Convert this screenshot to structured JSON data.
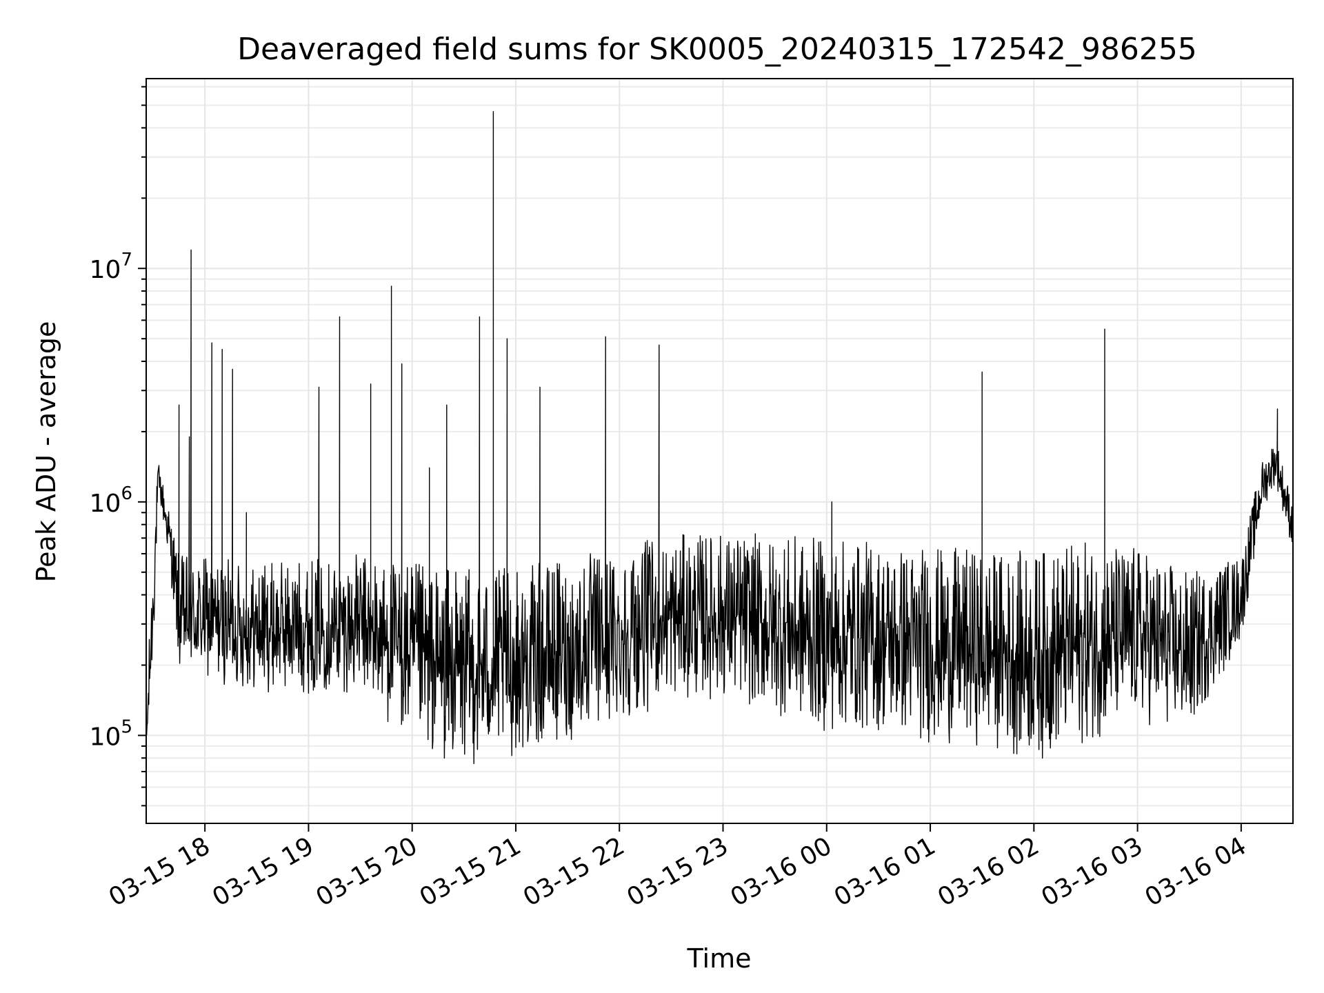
{
  "chart_data": {
    "type": "line",
    "title": "Deaveraged field sums for SK0005_20240315_172542_986255",
    "xlabel": "Time",
    "ylabel": "Peak ADU - average",
    "yscale": "log",
    "ylim": [
      42000,
      65000000
    ],
    "xlim": [
      "2024-03-15T17:26",
      "2024-03-16T04:30"
    ],
    "grid": true,
    "line_color": "#000000",
    "x_ticks": [
      {
        "label": "03-15 18",
        "time": "2024-03-15T18:00"
      },
      {
        "label": "03-15 19",
        "time": "2024-03-15T19:00"
      },
      {
        "label": "03-15 20",
        "time": "2024-03-15T20:00"
      },
      {
        "label": "03-15 21",
        "time": "2024-03-15T21:00"
      },
      {
        "label": "03-15 22",
        "time": "2024-03-15T22:00"
      },
      {
        "label": "03-15 23",
        "time": "2024-03-15T23:00"
      },
      {
        "label": "03-16 00",
        "time": "2024-03-16T00:00"
      },
      {
        "label": "03-16 01",
        "time": "2024-03-16T01:00"
      },
      {
        "label": "03-16 02",
        "time": "2024-03-16T02:00"
      },
      {
        "label": "03-16 03",
        "time": "2024-03-16T03:00"
      },
      {
        "label": "03-16 04",
        "time": "2024-03-16T04:00"
      }
    ],
    "y_ticks": [
      {
        "base": "10",
        "exp": "5",
        "value": 100000
      },
      {
        "base": "10",
        "exp": "6",
        "value": 1000000
      },
      {
        "base": "10",
        "exp": "7",
        "value": 10000000
      }
    ],
    "envelope": [
      {
        "x": "2024-03-15T17:26",
        "low": 70000,
        "high": 120000
      },
      {
        "x": "2024-03-15T17:30",
        "low": 200000,
        "high": 700000
      },
      {
        "x": "2024-03-15T17:33",
        "low": 1100000,
        "high": 1500000
      },
      {
        "x": "2024-03-15T17:40",
        "low": 500000,
        "high": 900000
      },
      {
        "x": "2024-03-15T17:45",
        "low": 180000,
        "high": 600000
      },
      {
        "x": "2024-03-15T18:30",
        "low": 150000,
        "high": 550000
      },
      {
        "x": "2024-03-15T19:30",
        "low": 150000,
        "high": 600000
      },
      {
        "x": "2024-03-15T20:00",
        "low": 85000,
        "high": 550000
      },
      {
        "x": "2024-03-15T20:30",
        "low": 70000,
        "high": 520000
      },
      {
        "x": "2024-03-15T21:00",
        "low": 80000,
        "high": 520000
      },
      {
        "x": "2024-03-15T21:30",
        "low": 90000,
        "high": 580000
      },
      {
        "x": "2024-03-15T22:00",
        "low": 110000,
        "high": 650000
      },
      {
        "x": "2024-03-15T22:30",
        "low": 140000,
        "high": 720000
      },
      {
        "x": "2024-03-15T23:00",
        "low": 140000,
        "high": 750000
      },
      {
        "x": "2024-03-15T23:30",
        "low": 120000,
        "high": 720000
      },
      {
        "x": "2024-03-16T00:00",
        "low": 100000,
        "high": 700000
      },
      {
        "x": "2024-03-16T00:30",
        "low": 100000,
        "high": 680000
      },
      {
        "x": "2024-03-16T01:00",
        "low": 90000,
        "high": 650000
      },
      {
        "x": "2024-03-16T01:30",
        "low": 90000,
        "high": 620000
      },
      {
        "x": "2024-03-16T02:00",
        "low": 75000,
        "high": 620000
      },
      {
        "x": "2024-03-16T02:30",
        "low": 90000,
        "high": 680000
      },
      {
        "x": "2024-03-16T03:00",
        "low": 110000,
        "high": 650000
      },
      {
        "x": "2024-03-16T03:30",
        "low": 100000,
        "high": 500000
      },
      {
        "x": "2024-03-16T04:00",
        "low": 250000,
        "high": 600000
      },
      {
        "x": "2024-03-16T04:12",
        "low": 900000,
        "high": 1500000
      },
      {
        "x": "2024-03-16T04:20",
        "low": 1200000,
        "high": 1900000
      },
      {
        "x": "2024-03-16T04:30",
        "low": 600000,
        "high": 1000000
      }
    ],
    "spikes": [
      {
        "x": "2024-03-15T17:45",
        "y": 2600000
      },
      {
        "x": "2024-03-15T17:51",
        "y": 1900000
      },
      {
        "x": "2024-03-15T17:52",
        "y": 12000000
      },
      {
        "x": "2024-03-15T18:04",
        "y": 4800000
      },
      {
        "x": "2024-03-15T18:10",
        "y": 4500000
      },
      {
        "x": "2024-03-15T18:16",
        "y": 3700000
      },
      {
        "x": "2024-03-15T18:24",
        "y": 900000
      },
      {
        "x": "2024-03-15T19:06",
        "y": 3100000
      },
      {
        "x": "2024-03-15T19:18",
        "y": 6200000
      },
      {
        "x": "2024-03-15T19:36",
        "y": 3200000
      },
      {
        "x": "2024-03-15T19:48",
        "y": 8400000
      },
      {
        "x": "2024-03-15T19:54",
        "y": 3900000
      },
      {
        "x": "2024-03-15T20:10",
        "y": 1400000
      },
      {
        "x": "2024-03-15T20:20",
        "y": 2600000
      },
      {
        "x": "2024-03-15T20:39",
        "y": 6200000
      },
      {
        "x": "2024-03-15T20:47",
        "y": 47000000
      },
      {
        "x": "2024-03-15T20:55",
        "y": 5000000
      },
      {
        "x": "2024-03-15T21:14",
        "y": 3100000
      },
      {
        "x": "2024-03-15T21:52",
        "y": 5100000
      },
      {
        "x": "2024-03-15T22:23",
        "y": 4700000
      },
      {
        "x": "2024-03-16T00:03",
        "y": 1000000
      },
      {
        "x": "2024-03-16T01:30",
        "y": 3600000
      },
      {
        "x": "2024-03-16T02:41",
        "y": 5500000
      },
      {
        "x": "2024-03-16T04:21",
        "y": 2500000
      }
    ]
  }
}
